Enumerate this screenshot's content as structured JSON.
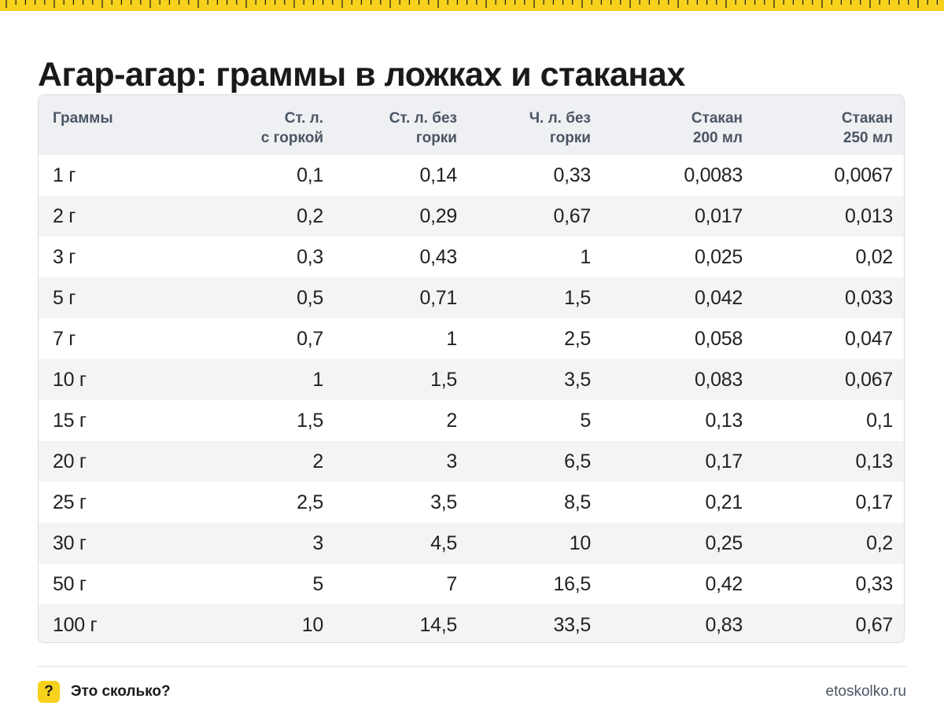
{
  "title": "Агар-агар: граммы в ложках и стаканах",
  "colors": {
    "accent": "#f6d21c",
    "header_bg": "#eef0f3",
    "stripe_bg": "#f3f4f6",
    "header_text": "#4b5563"
  },
  "table": {
    "headers": [
      [
        "Граммы"
      ],
      [
        "Ст. л.",
        "с горкой"
      ],
      [
        "Ст. л. без",
        "горки"
      ],
      [
        "Ч. л. без",
        "горки"
      ],
      [
        "Стакан",
        "200 мл"
      ],
      [
        "Стакан",
        "250 мл"
      ]
    ],
    "rows": [
      [
        "1 г",
        "0,1",
        "0,14",
        "0,33",
        "0,0083",
        "0,0067"
      ],
      [
        "2 г",
        "0,2",
        "0,29",
        "0,67",
        "0,017",
        "0,013"
      ],
      [
        "3 г",
        "0,3",
        "0,43",
        "1",
        "0,025",
        "0,02"
      ],
      [
        "5 г",
        "0,5",
        "0,71",
        "1,5",
        "0,042",
        "0,033"
      ],
      [
        "7 г",
        "0,7",
        "1",
        "2,5",
        "0,058",
        "0,047"
      ],
      [
        "10 г",
        "1",
        "1,5",
        "3,5",
        "0,083",
        "0,067"
      ],
      [
        "15 г",
        "1,5",
        "2",
        "5",
        "0,13",
        "0,1"
      ],
      [
        "20 г",
        "2",
        "3",
        "6,5",
        "0,17",
        "0,13"
      ],
      [
        "25 г",
        "2,5",
        "3,5",
        "8,5",
        "0,21",
        "0,17"
      ],
      [
        "30 г",
        "3",
        "4,5",
        "10",
        "0,25",
        "0,2"
      ],
      [
        "50 г",
        "5",
        "7",
        "16,5",
        "0,42",
        "0,33"
      ],
      [
        "100 г",
        "10",
        "14,5",
        "33,5",
        "0,83",
        "0,67"
      ]
    ]
  },
  "footer": {
    "badge": "?",
    "brand_name": "Это сколько?",
    "site": "etoskolko.ru"
  }
}
